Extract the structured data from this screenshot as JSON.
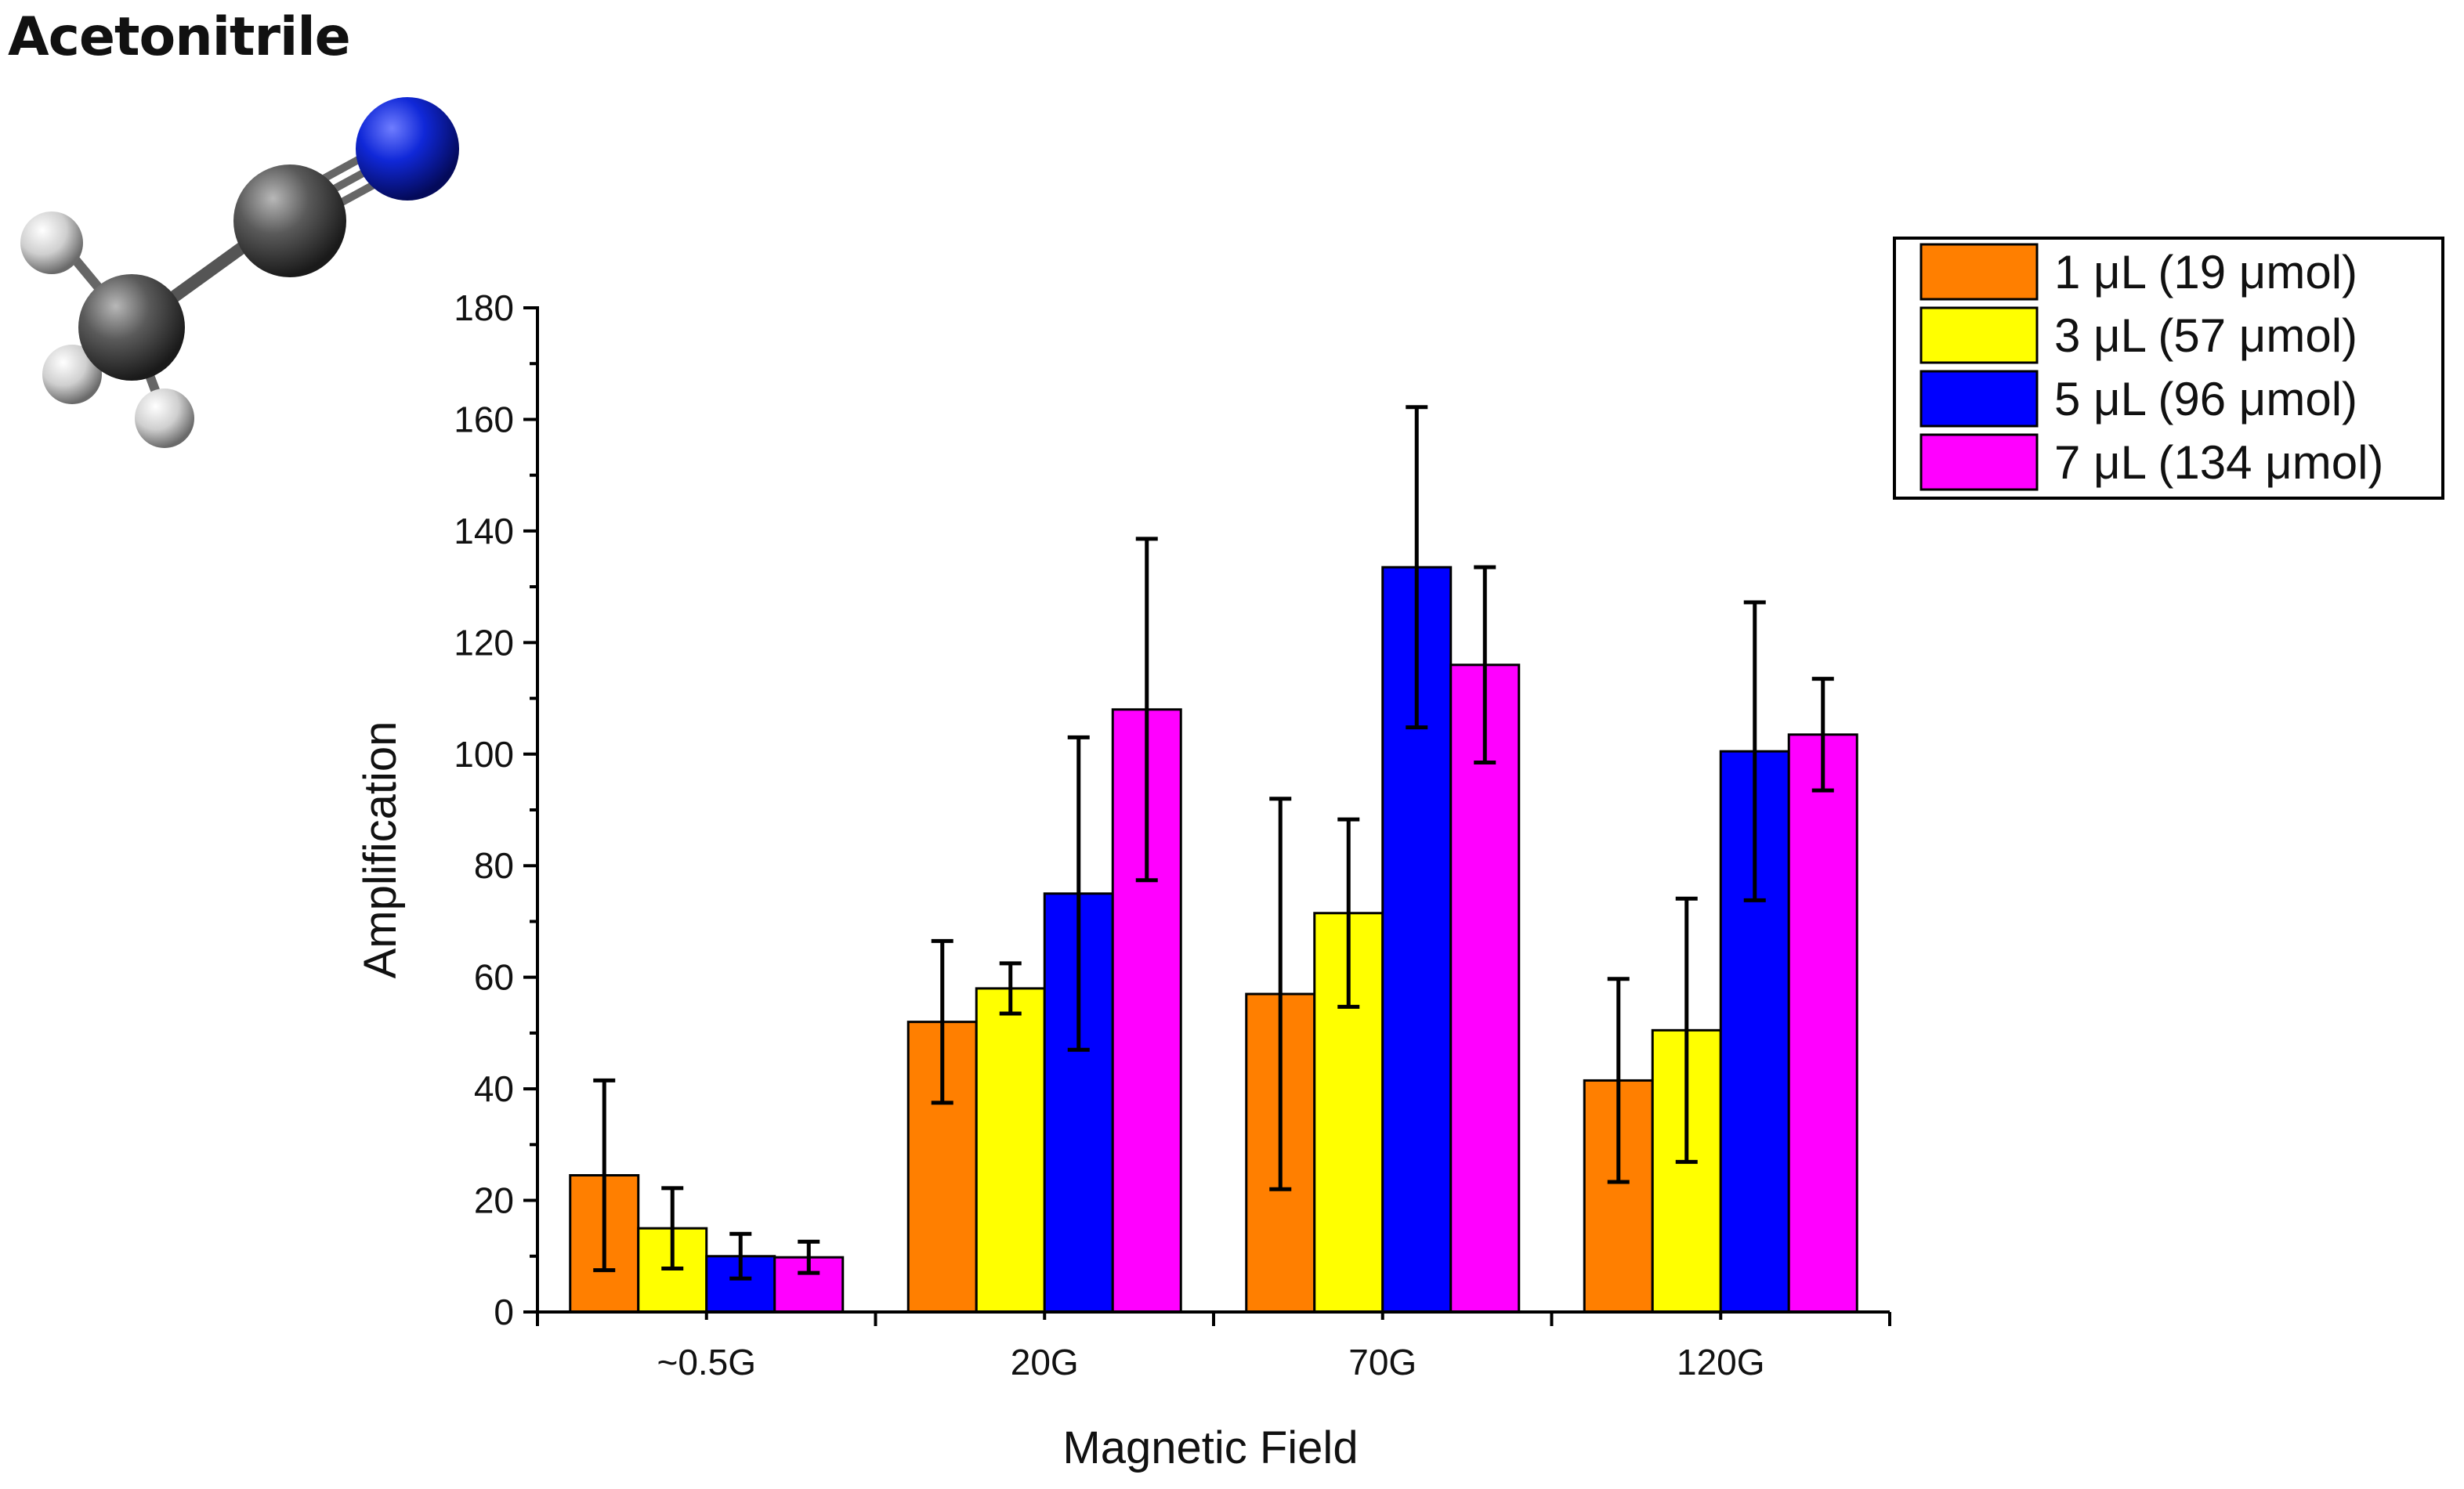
{
  "figure": {
    "title": "Acetonitrile"
  },
  "chart_data": {
    "type": "bar",
    "title": "",
    "xlabel": "Magnetic Field",
    "ylabel": "Amplification",
    "ylim": [
      0,
      180
    ],
    "yticks": [
      0,
      20,
      40,
      60,
      80,
      100,
      120,
      140,
      160,
      180
    ],
    "categories": [
      "~0.5G",
      "20G",
      "70G",
      "120G"
    ],
    "legend_position": "top-right",
    "series": [
      {
        "name": "1 μL (19 μmol)",
        "color": "#FF7F00",
        "values": [
          24.5,
          52,
          57,
          41.5
        ],
        "errors": [
          17,
          14.5,
          35,
          18.2
        ]
      },
      {
        "name": "3 μL (57 μmol)",
        "color": "#FFFF00",
        "values": [
          15,
          58,
          71.5,
          50.5
        ],
        "errors": [
          7.2,
          4.5,
          16.8,
          23.6
        ]
      },
      {
        "name": "5 μL (96 μmol)",
        "color": "#0000FF",
        "values": [
          10,
          75,
          133.5,
          100.5
        ],
        "errors": [
          4,
          28,
          28.7,
          26.7
        ]
      },
      {
        "name": "7 μL (134 μmol)",
        "color": "#FF00FF",
        "values": [
          9.8,
          108,
          116,
          103.5
        ],
        "errors": [
          2.8,
          30.6,
          17.5,
          10
        ]
      }
    ]
  }
}
